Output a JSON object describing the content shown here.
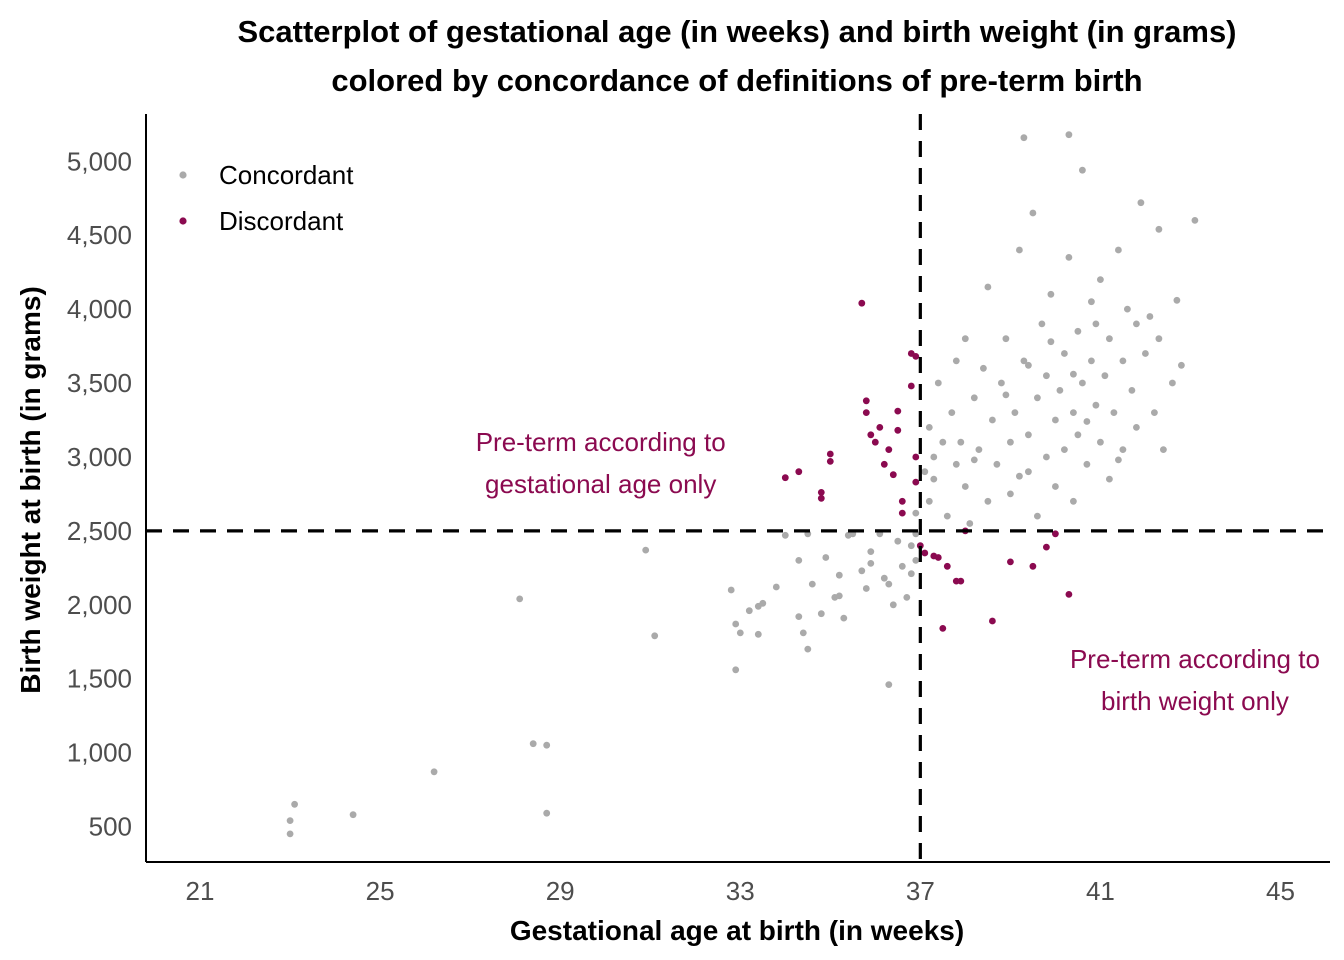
{
  "chart_data": {
    "type": "scatter",
    "title": [
      "Scatterplot of gestational age (in weeks) and birth weight (in grams)",
      "colored by concordance of definitions of pre-term birth"
    ],
    "xlabel": "Gestational age at birth (in weeks)",
    "ylabel": "Birth weight at birth (in grams)",
    "xlim": [
      19.8,
      46.1
    ],
    "ylim": [
      260,
      5320
    ],
    "x_ticks": [
      21,
      25,
      29,
      33,
      37,
      41,
      45
    ],
    "x_tick_labels": [
      "21",
      "25",
      "29",
      "33",
      "37",
      "41",
      "45"
    ],
    "y_ticks": [
      500,
      1000,
      1500,
      2000,
      2500,
      3000,
      3500,
      4000,
      4500,
      5000
    ],
    "y_tick_labels": [
      "500",
      "1,000",
      "1,500",
      "2,000",
      "2,500",
      "3,000",
      "3,500",
      "4,000",
      "4,500",
      "5,000"
    ],
    "reference_lines": {
      "x": 37,
      "y": 2500,
      "style": "dashed"
    },
    "legend": {
      "position": "top-left",
      "entries": [
        {
          "label": "Concordant",
          "color": "#aaaaaa"
        },
        {
          "label": "Discordant",
          "color": "#8b0a50"
        }
      ]
    },
    "annotations": [
      {
        "lines": [
          "Pre-term according to",
          "gestational age only"
        ],
        "x": 29.9,
        "y": 2960,
        "color": "#8b0a50"
      },
      {
        "lines": [
          "Pre-term according to",
          "birth weight only"
        ],
        "x": 43.1,
        "y": 1490,
        "color": "#8b0a50"
      }
    ],
    "series": [
      {
        "name": "Concordant",
        "color": "#aaaaaa",
        "points": [
          [
            23.0,
            450
          ],
          [
            23.0,
            540
          ],
          [
            23.1,
            650
          ],
          [
            24.4,
            580
          ],
          [
            26.2,
            870
          ],
          [
            28.1,
            2040
          ],
          [
            28.4,
            1060
          ],
          [
            28.7,
            1050
          ],
          [
            28.7,
            590
          ],
          [
            30.9,
            2370
          ],
          [
            31.1,
            1790
          ],
          [
            32.8,
            2100
          ],
          [
            32.9,
            1870
          ],
          [
            33.0,
            1810
          ],
          [
            32.9,
            1560
          ],
          [
            33.2,
            1960
          ],
          [
            33.4,
            1800
          ],
          [
            33.4,
            1990
          ],
          [
            33.5,
            2010
          ],
          [
            33.8,
            2120
          ],
          [
            34.0,
            2470
          ],
          [
            34.3,
            1920
          ],
          [
            34.3,
            2300
          ],
          [
            34.4,
            1810
          ],
          [
            34.5,
            1700
          ],
          [
            34.5,
            2480
          ],
          [
            34.6,
            2140
          ],
          [
            34.8,
            1940
          ],
          [
            34.9,
            2320
          ],
          [
            35.1,
            2050
          ],
          [
            35.2,
            2060
          ],
          [
            35.2,
            2200
          ],
          [
            35.3,
            1910
          ],
          [
            35.4,
            2470
          ],
          [
            35.5,
            2480
          ],
          [
            35.7,
            2230
          ],
          [
            35.8,
            2110
          ],
          [
            35.9,
            2280
          ],
          [
            35.9,
            2360
          ],
          [
            36.1,
            2480
          ],
          [
            36.2,
            2180
          ],
          [
            36.3,
            2140
          ],
          [
            36.3,
            1460
          ],
          [
            36.4,
            2000
          ],
          [
            36.5,
            2430
          ],
          [
            36.6,
            2260
          ],
          [
            36.7,
            2050
          ],
          [
            36.8,
            2400
          ],
          [
            36.8,
            2210
          ],
          [
            36.9,
            2300
          ],
          [
            36.9,
            2620
          ],
          [
            36.9,
            2480
          ],
          [
            37.1,
            2900
          ],
          [
            37.2,
            2700
          ],
          [
            37.2,
            3200
          ],
          [
            37.3,
            3000
          ],
          [
            37.3,
            2850
          ],
          [
            37.4,
            3500
          ],
          [
            37.5,
            3100
          ],
          [
            37.6,
            2600
          ],
          [
            37.7,
            3300
          ],
          [
            37.8,
            3650
          ],
          [
            37.8,
            2950
          ],
          [
            37.9,
            3100
          ],
          [
            38.0,
            3800
          ],
          [
            38.0,
            2800
          ],
          [
            38.1,
            2550
          ],
          [
            38.2,
            3400
          ],
          [
            38.3,
            3050
          ],
          [
            38.4,
            3600
          ],
          [
            38.5,
            2700
          ],
          [
            38.5,
            4150
          ],
          [
            38.6,
            3250
          ],
          [
            38.7,
            2950
          ],
          [
            38.8,
            3500
          ],
          [
            38.9,
            3800
          ],
          [
            39.0,
            3100
          ],
          [
            39.0,
            2750
          ],
          [
            39.1,
            3300
          ],
          [
            39.2,
            4400
          ],
          [
            39.3,
            5160
          ],
          [
            39.3,
            3650
          ],
          [
            39.4,
            2900
          ],
          [
            39.4,
            3150
          ],
          [
            39.5,
            4650
          ],
          [
            39.6,
            3400
          ],
          [
            39.6,
            2600
          ],
          [
            39.7,
            3900
          ],
          [
            39.8,
            3000
          ],
          [
            39.8,
            3550
          ],
          [
            39.9,
            4100
          ],
          [
            40.0,
            3250
          ],
          [
            40.0,
            2800
          ],
          [
            40.1,
            3450
          ],
          [
            40.2,
            3700
          ],
          [
            40.2,
            3050
          ],
          [
            40.3,
            4350
          ],
          [
            40.3,
            5180
          ],
          [
            40.4,
            3300
          ],
          [
            40.4,
            2700
          ],
          [
            40.5,
            3850
          ],
          [
            40.5,
            3150
          ],
          [
            40.6,
            4940
          ],
          [
            40.6,
            3500
          ],
          [
            40.7,
            2950
          ],
          [
            40.8,
            3650
          ],
          [
            40.8,
            4050
          ],
          [
            40.9,
            3350
          ],
          [
            41.0,
            3100
          ],
          [
            41.0,
            4200
          ],
          [
            41.1,
            3550
          ],
          [
            41.2,
            3800
          ],
          [
            41.2,
            2850
          ],
          [
            41.3,
            3300
          ],
          [
            41.4,
            4400
          ],
          [
            41.5,
            3650
          ],
          [
            41.5,
            3050
          ],
          [
            41.6,
            4000
          ],
          [
            41.7,
            3450
          ],
          [
            41.8,
            3200
          ],
          [
            41.9,
            4720
          ],
          [
            42.0,
            3700
          ],
          [
            42.1,
            3950
          ],
          [
            42.2,
            3300
          ],
          [
            42.3,
            4540
          ],
          [
            42.3,
            3800
          ],
          [
            42.4,
            3050
          ],
          [
            42.6,
            3500
          ],
          [
            42.7,
            4060
          ],
          [
            42.8,
            3620
          ],
          [
            43.1,
            4600
          ],
          [
            38.2,
            2980
          ],
          [
            38.9,
            3420
          ],
          [
            39.4,
            3620
          ],
          [
            40.7,
            3240
          ],
          [
            41.4,
            2980
          ],
          [
            39.9,
            3780
          ],
          [
            40.9,
            3900
          ],
          [
            39.2,
            2870
          ],
          [
            40.4,
            3560
          ],
          [
            41.8,
            3900
          ]
        ]
      },
      {
        "name": "Discordant",
        "color": "#8b0a50",
        "points": [
          [
            34.0,
            2860
          ],
          [
            34.3,
            2900
          ],
          [
            34.8,
            2760
          ],
          [
            34.8,
            2720
          ],
          [
            35.0,
            3020
          ],
          [
            35.0,
            2970
          ],
          [
            35.7,
            4040
          ],
          [
            35.8,
            3380
          ],
          [
            35.8,
            3300
          ],
          [
            35.9,
            3150
          ],
          [
            36.0,
            3100
          ],
          [
            36.1,
            3200
          ],
          [
            36.2,
            2950
          ],
          [
            36.3,
            3050
          ],
          [
            36.4,
            2880
          ],
          [
            36.5,
            3310
          ],
          [
            36.5,
            3180
          ],
          [
            36.6,
            2700
          ],
          [
            36.6,
            2620
          ],
          [
            36.8,
            3700
          ],
          [
            36.8,
            3480
          ],
          [
            36.9,
            3680
          ],
          [
            36.9,
            3000
          ],
          [
            36.9,
            2830
          ],
          [
            37.0,
            2400
          ],
          [
            37.1,
            2350
          ],
          [
            37.3,
            2330
          ],
          [
            37.4,
            2320
          ],
          [
            37.6,
            2260
          ],
          [
            37.5,
            1840
          ],
          [
            37.8,
            2160
          ],
          [
            37.9,
            2160
          ],
          [
            38.0,
            2500
          ],
          [
            38.6,
            1890
          ],
          [
            39.0,
            2290
          ],
          [
            39.5,
            2260
          ],
          [
            39.8,
            2390
          ],
          [
            40.0,
            2480
          ],
          [
            40.3,
            2070
          ]
        ]
      }
    ]
  }
}
